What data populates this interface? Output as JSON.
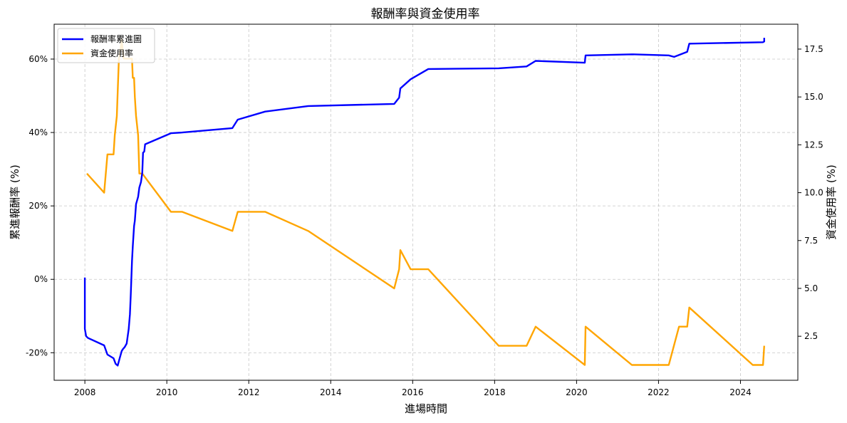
{
  "chart_data": {
    "type": "line",
    "title": "報酬率與資金使用率",
    "xlabel": "進場時間",
    "ylabel_left": "累進報酬率 (%)",
    "ylabel_right": "資金使用率 (%)",
    "x_ticks": [
      "2008",
      "2010",
      "2012",
      "2014",
      "2016",
      "2018",
      "2020",
      "2022",
      "2024"
    ],
    "x_tick_values": [
      2008,
      2010,
      2012,
      2014,
      2016,
      2018,
      2020,
      2022,
      2024
    ],
    "xlim": [
      2007.25,
      2025.4
    ],
    "y_left_ticks": [
      "-20%",
      "0%",
      "20%",
      "40%",
      "60%"
    ],
    "y_left_tick_values": [
      -20,
      0,
      20,
      40,
      60
    ],
    "ylim_left": [
      -27.5,
      69.5
    ],
    "y_right_ticks": [
      "2.5",
      "5.0",
      "7.5",
      "10.0",
      "12.5",
      "15.0",
      "17.5"
    ],
    "y_right_tick_values": [
      2.5,
      5.0,
      7.5,
      10.0,
      12.5,
      15.0,
      17.5
    ],
    "ylim_right": [
      0.2,
      18.8
    ],
    "grid": true,
    "legend_position": "top-left",
    "series": [
      {
        "name": "報酬率累進圖",
        "axis": "left",
        "color": "#0000ff",
        "x": [
          2008.0,
          2008.0,
          2008.03,
          2008.08,
          2008.47,
          2008.55,
          2008.7,
          2008.75,
          2008.8,
          2008.85,
          2008.9,
          2008.93,
          2008.97,
          2009.02,
          2009.07,
          2009.1,
          2009.12,
          2009.15,
          2009.17,
          2009.2,
          2009.22,
          2009.25,
          2009.3,
          2009.33,
          2009.37,
          2009.4,
          2009.42,
          2009.45,
          2009.47,
          2010.1,
          2010.37,
          2011.6,
          2011.73,
          2012.4,
          2013.45,
          2015.55,
          2015.67,
          2015.7,
          2015.95,
          2016.38,
          2018.1,
          2018.78,
          2019.0,
          2020.2,
          2020.22,
          2021.35,
          2022.25,
          2022.38,
          2022.7,
          2022.75,
          2024.55,
          2024.58,
          2024.58
        ],
        "y": [
          0.5,
          -13.5,
          -15.5,
          -16.0,
          -18.0,
          -20.5,
          -21.5,
          -23.0,
          -23.5,
          -21.5,
          -19.5,
          -19.0,
          -18.5,
          -17.5,
          -13.5,
          -9.5,
          -4.0,
          5.0,
          9.0,
          14.5,
          16.0,
          20.5,
          22.5,
          25.0,
          26.5,
          29.0,
          34.5,
          34.8,
          36.8,
          39.8,
          40.0,
          41.2,
          43.5,
          45.7,
          47.2,
          47.8,
          49.5,
          52.0,
          54.5,
          57.3,
          57.5,
          58.0,
          59.5,
          59.0,
          61.0,
          61.3,
          61.0,
          60.6,
          62.0,
          64.2,
          64.6,
          64.8,
          65.8
        ]
      },
      {
        "name": "資金使用率",
        "axis": "right",
        "color": "#ffa500",
        "x": [
          2008.05,
          2008.47,
          2008.55,
          2008.7,
          2008.73,
          2008.78,
          2008.83,
          2008.87,
          2008.9,
          2008.92,
          2008.95,
          2008.98,
          2009.02,
          2009.05,
          2009.08,
          2009.15,
          2009.17,
          2009.2,
          2009.22,
          2009.25,
          2009.3,
          2009.33,
          2009.37,
          2009.4,
          2010.1,
          2010.37,
          2011.6,
          2011.73,
          2012.4,
          2013.45,
          2015.55,
          2015.67,
          2015.7,
          2015.95,
          2016.38,
          2018.1,
          2018.78,
          2019.0,
          2020.2,
          2020.22,
          2021.35,
          2022.25,
          2022.5,
          2022.7,
          2022.75,
          2024.3,
          2024.55,
          2024.58
        ],
        "y": [
          11.0,
          10.0,
          12.0,
          12.0,
          13.0,
          14.0,
          17.0,
          17.5,
          18.0,
          17.5,
          17.0,
          17.0,
          17.0,
          17.0,
          17.0,
          17.0,
          16.0,
          16.0,
          15.0,
          14.0,
          13.0,
          11.0,
          11.0,
          11.0,
          9.0,
          9.0,
          8.0,
          9.0,
          9.0,
          8.0,
          5.0,
          6.0,
          7.0,
          6.0,
          6.0,
          2.0,
          2.0,
          3.0,
          1.0,
          3.0,
          1.0,
          1.0,
          3.0,
          3.0,
          4.0,
          1.0,
          1.0,
          2.0
        ]
      }
    ]
  }
}
